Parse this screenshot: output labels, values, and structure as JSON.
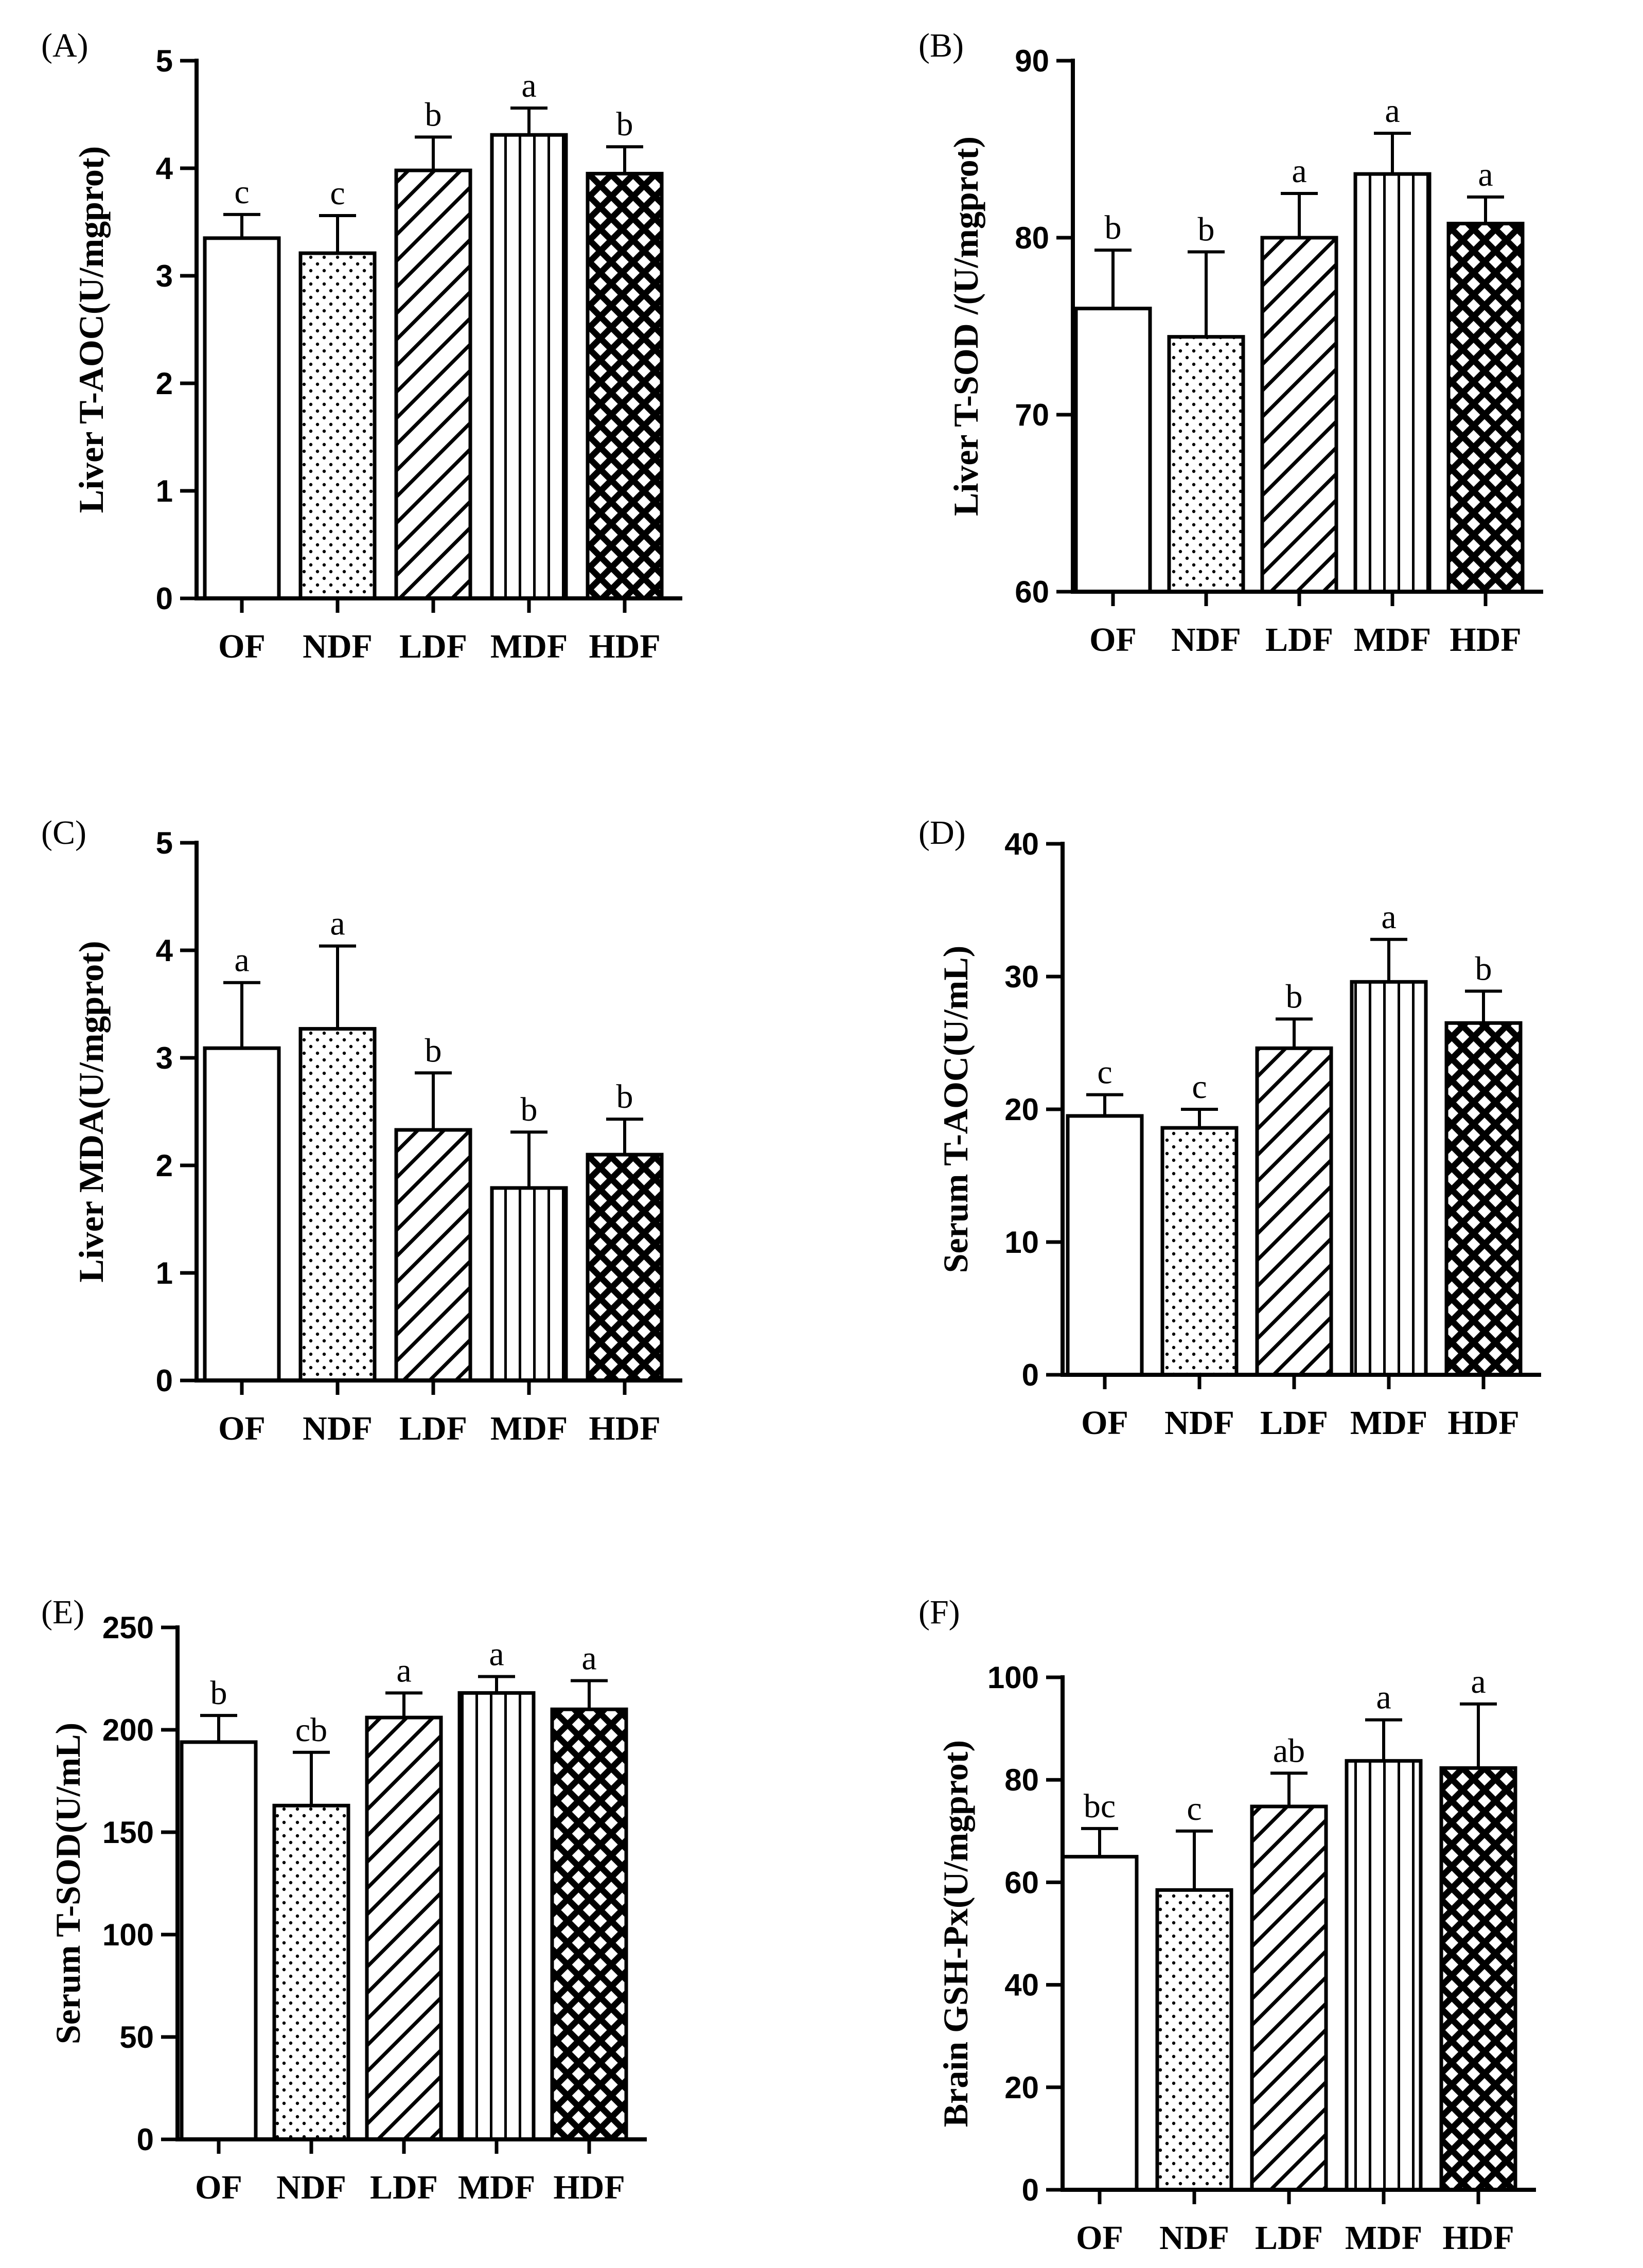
{
  "figure": {
    "categories": [
      "OF",
      "NDF",
      "LDF",
      "MDF",
      "HDF"
    ],
    "patterns": [
      "none",
      "dots",
      "diag",
      "vert",
      "cross"
    ]
  },
  "chart_data": [
    {
      "type": "bar",
      "panel": "(A)",
      "ylabel": "Liver T-AOC(U/mgprot)",
      "categories": [
        "OF",
        "NDF",
        "LDF",
        "MDF",
        "HDF"
      ],
      "values": [
        3.35,
        3.21,
        3.98,
        4.31,
        3.95
      ],
      "errors": [
        0.22,
        0.35,
        0.31,
        0.25,
        0.25
      ],
      "significance": [
        "c",
        "c",
        "b",
        "a",
        "b"
      ],
      "ylim": [
        0,
        5
      ],
      "yticks": [
        0,
        1,
        2,
        3,
        4,
        5
      ],
      "ytick_labels": [
        "0",
        "1",
        "2",
        "3",
        "4",
        "5"
      ]
    },
    {
      "type": "bar",
      "panel": "(B)",
      "ylabel": "Liver T-SOD /(U/mgprot)",
      "categories": [
        "OF",
        "NDF",
        "LDF",
        "MDF",
        "HDF"
      ],
      "values": [
        76.0,
        74.4,
        80.0,
        83.6,
        80.8
      ],
      "errors": [
        3.3,
        4.8,
        2.5,
        2.3,
        1.5
      ],
      "significance": [
        "b",
        "b",
        "a",
        "a",
        "a"
      ],
      "ylim": [
        60,
        90
      ],
      "yticks": [
        60,
        70,
        80,
        90
      ],
      "ytick_labels": [
        "60",
        "70",
        "80",
        "90"
      ]
    },
    {
      "type": "bar",
      "panel": "(C)",
      "ylabel": "Liver MDA(U/mgprot)",
      "categories": [
        "OF",
        "NDF",
        "LDF",
        "MDF",
        "HDF"
      ],
      "values": [
        3.09,
        3.27,
        2.33,
        1.79,
        2.1
      ],
      "errors": [
        0.61,
        0.77,
        0.53,
        0.52,
        0.33
      ],
      "significance": [
        "a",
        "a",
        "b",
        "b",
        "b"
      ],
      "ylim": [
        0,
        5
      ],
      "yticks": [
        0,
        1,
        2,
        3,
        4,
        5
      ],
      "ytick_labels": [
        "0",
        "1",
        "2",
        "3",
        "4",
        "5"
      ]
    },
    {
      "type": "bar",
      "panel": "(D)",
      "ylabel": "Serum T-AOC(U/mL)",
      "categories": [
        "OF",
        "NDF",
        "LDF",
        "MDF",
        "HDF"
      ],
      "values": [
        19.5,
        18.6,
        24.6,
        29.6,
        26.5
      ],
      "errors": [
        1.6,
        1.4,
        2.2,
        3.2,
        2.4
      ],
      "significance": [
        "c",
        "c",
        "b",
        "a",
        "b"
      ],
      "ylim": [
        0,
        40
      ],
      "yticks": [
        0,
        10,
        20,
        30,
        40
      ],
      "ytick_labels": [
        "0",
        "10",
        "20",
        "30",
        "40"
      ]
    },
    {
      "type": "bar",
      "panel": "(E)",
      "ylabel": "Serum T-SOD(U/mL)",
      "categories": [
        "OF",
        "NDF",
        "LDF",
        "MDF",
        "HDF"
      ],
      "values": [
        194,
        163,
        206,
        218,
        210
      ],
      "errors": [
        13,
        26,
        12,
        8,
        14
      ],
      "significance": [
        "b",
        "cb",
        "a",
        "a",
        "a"
      ],
      "ylim": [
        0,
        250
      ],
      "yticks": [
        0,
        50,
        100,
        150,
        200,
        250
      ],
      "ytick_labels": [
        "0",
        "50",
        "100",
        "150",
        "200",
        "250"
      ]
    },
    {
      "type": "bar",
      "panel": "(F)",
      "ylabel": "Brain GSH-Px(U/mgprot)",
      "categories": [
        "OF",
        "NDF",
        "LDF",
        "MDF",
        "HDF"
      ],
      "values": [
        65,
        58.5,
        74.8,
        83.7,
        82.3
      ],
      "errors": [
        5.5,
        11.5,
        6.5,
        8,
        12.5
      ],
      "significance": [
        "bc",
        "c",
        "ab",
        "a",
        "a"
      ],
      "ylim": [
        0,
        100
      ],
      "yticks": [
        0,
        20,
        40,
        60,
        80,
        100
      ],
      "ytick_labels": [
        "0",
        "20",
        "40",
        "60",
        "80",
        "100"
      ]
    }
  ]
}
